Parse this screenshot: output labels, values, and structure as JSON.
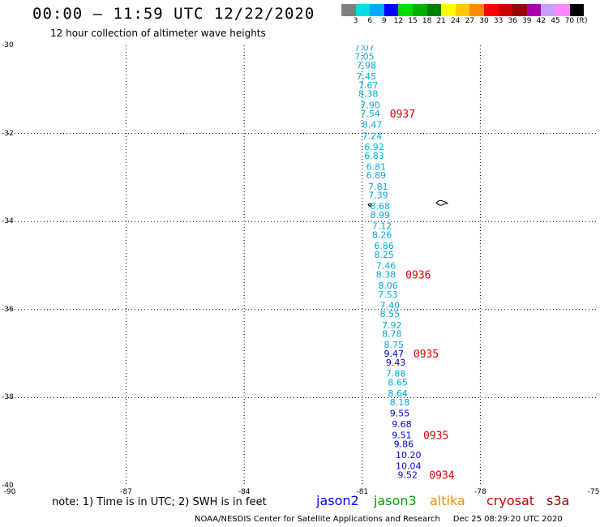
{
  "header": {
    "title": "00:00 – 11:59 UTC 12/22/2020",
    "subtitle": "12 hour collection of altimeter wave heights"
  },
  "colorbar": {
    "colors": [
      "#808080",
      "#00e0e0",
      "#00aaff",
      "#0000ff",
      "#00dd00",
      "#00b000",
      "#008000",
      "#ffff00",
      "#ffc800",
      "#ff8c00",
      "#ff0000",
      "#cc0000",
      "#990000",
      "#aa00aa",
      "#c8a0ff",
      "#ff88ff",
      "#000000"
    ],
    "labels": [
      "3",
      "6",
      "9",
      "12",
      "15",
      "18",
      "21",
      "24",
      "27",
      "30",
      "33",
      "36",
      "39",
      "42",
      "45",
      "70 (ft)"
    ]
  },
  "axes": {
    "lat_labels": [
      "-30",
      "-32",
      "-34",
      "-36",
      "-38",
      "-40"
    ],
    "lon_labels": [
      "-90",
      "-87",
      "-84",
      "-81",
      "-78",
      "-75"
    ],
    "lat_range": [
      -40,
      -30
    ],
    "lon_range": [
      -90,
      -75
    ]
  },
  "chart_data": {
    "type": "scatter",
    "wave_heights_ft": [
      {
        "lat": -30.05,
        "lon": -81.2,
        "value": "7.07",
        "color": "#00aadd"
      },
      {
        "lat": -30.25,
        "lon": -81.2,
        "value": "7.05",
        "color": "#00aadd"
      },
      {
        "lat": -30.45,
        "lon": -81.15,
        "value": "7.98",
        "color": "#00aadd"
      },
      {
        "lat": -30.7,
        "lon": -81.15,
        "value": "7.45",
        "color": "#00aadd"
      },
      {
        "lat": -30.9,
        "lon": -81.1,
        "value": "7.67",
        "color": "#00aadd"
      },
      {
        "lat": -31.1,
        "lon": -81.1,
        "value": "8.38",
        "color": "#00aadd"
      },
      {
        "lat": -31.35,
        "lon": -81.05,
        "value": "7.90",
        "color": "#00aadd"
      },
      {
        "lat": -31.55,
        "lon": -81.05,
        "value": "7.54",
        "color": "#00aadd"
      },
      {
        "lat": -31.8,
        "lon": -81.0,
        "value": "8.47",
        "color": "#00aadd"
      },
      {
        "lat": -32.05,
        "lon": -81.0,
        "value": "7.24",
        "color": "#00aadd"
      },
      {
        "lat": -32.3,
        "lon": -80.95,
        "value": "6.92",
        "color": "#00aadd"
      },
      {
        "lat": -32.5,
        "lon": -80.95,
        "value": "6.83",
        "color": "#00aadd"
      },
      {
        "lat": -32.75,
        "lon": -80.9,
        "value": "6.81",
        "color": "#00aadd"
      },
      {
        "lat": -32.95,
        "lon": -80.9,
        "value": "6.89",
        "color": "#00aadd"
      },
      {
        "lat": -33.2,
        "lon": -80.85,
        "value": "7.81",
        "color": "#00aadd"
      },
      {
        "lat": -33.4,
        "lon": -80.85,
        "value": "7.39",
        "color": "#00aadd"
      },
      {
        "lat": -33.65,
        "lon": -80.8,
        "value": "8.68",
        "color": "#00aadd"
      },
      {
        "lat": -33.85,
        "lon": -80.8,
        "value": "8.99",
        "color": "#00aadd"
      },
      {
        "lat": -34.1,
        "lon": -80.75,
        "value": "7.12",
        "color": "#00aadd"
      },
      {
        "lat": -34.3,
        "lon": -80.75,
        "value": "8.26",
        "color": "#00aadd"
      },
      {
        "lat": -34.55,
        "lon": -80.7,
        "value": "6.86",
        "color": "#00aadd"
      },
      {
        "lat": -34.75,
        "lon": -80.7,
        "value": "8.25",
        "color": "#00aadd"
      },
      {
        "lat": -35.0,
        "lon": -80.65,
        "value": "7.46",
        "color": "#00aadd"
      },
      {
        "lat": -35.2,
        "lon": -80.65,
        "value": "8.38",
        "color": "#00aadd"
      },
      {
        "lat": -35.45,
        "lon": -80.6,
        "value": "8.06",
        "color": "#00aadd"
      },
      {
        "lat": -35.65,
        "lon": -80.6,
        "value": "7.53",
        "color": "#00aadd"
      },
      {
        "lat": -35.9,
        "lon": -80.55,
        "value": "7.40",
        "color": "#00aadd"
      },
      {
        "lat": -36.1,
        "lon": -80.55,
        "value": "8.55",
        "color": "#00aadd"
      },
      {
        "lat": -36.35,
        "lon": -80.5,
        "value": "7.92",
        "color": "#00aadd"
      },
      {
        "lat": -36.55,
        "lon": -80.5,
        "value": "8.78",
        "color": "#00aadd"
      },
      {
        "lat": -36.8,
        "lon": -80.45,
        "value": "8.75",
        "color": "#00aadd"
      },
      {
        "lat": -37.0,
        "lon": -80.45,
        "value": "9.47",
        "color": "#0000dd"
      },
      {
        "lat": -37.2,
        "lon": -80.4,
        "value": "9.43",
        "color": "#0000dd"
      },
      {
        "lat": -37.45,
        "lon": -80.4,
        "value": "7.88",
        "color": "#00aadd"
      },
      {
        "lat": -37.65,
        "lon": -80.35,
        "value": "8.65",
        "color": "#00aadd"
      },
      {
        "lat": -37.9,
        "lon": -80.35,
        "value": "8.64",
        "color": "#00aadd"
      },
      {
        "lat": -38.1,
        "lon": -80.3,
        "value": "8.18",
        "color": "#00aadd"
      },
      {
        "lat": -38.35,
        "lon": -80.3,
        "value": "9.55",
        "color": "#0000dd"
      },
      {
        "lat": -38.6,
        "lon": -80.25,
        "value": "9.68",
        "color": "#0000dd"
      },
      {
        "lat": -38.85,
        "lon": -80.25,
        "value": "9.51",
        "color": "#0000dd"
      },
      {
        "lat": -39.05,
        "lon": -80.2,
        "value": "9.86",
        "color": "#0000dd"
      },
      {
        "lat": -39.3,
        "lon": -80.15,
        "value": "10.20",
        "color": "#0000dd"
      },
      {
        "lat": -39.55,
        "lon": -80.15,
        "value": "10.04",
        "color": "#0000dd"
      },
      {
        "lat": -39.75,
        "lon": -80.1,
        "value": "9.52",
        "color": "#0000dd"
      }
    ],
    "pass_times": [
      {
        "lat": -31.55,
        "lon": -80.3,
        "label": "0937"
      },
      {
        "lat": -35.2,
        "lon": -79.9,
        "label": "0936"
      },
      {
        "lat": -37.0,
        "lon": -79.7,
        "label": "0935"
      },
      {
        "lat": -38.85,
        "lon": -79.45,
        "label": "0935"
      },
      {
        "lat": -39.75,
        "lon": -79.3,
        "label": "0934"
      }
    ]
  },
  "note": "note: 1) Time is in UTC; 2) SWH is in feet",
  "legend": [
    {
      "label": "jason2",
      "color": "#0000ff"
    },
    {
      "label": "jason3",
      "color": "#00a000"
    },
    {
      "label": "altika",
      "color": "#ff8c00"
    },
    {
      "label": "cryosat",
      "color": "#dd0000"
    },
    {
      "label": "s3a",
      "color": "#990000"
    }
  ],
  "footer": "NOAA/NESDIS Center for Satellite Applications and Research     Dec 25 08:29:20 UTC 2020"
}
